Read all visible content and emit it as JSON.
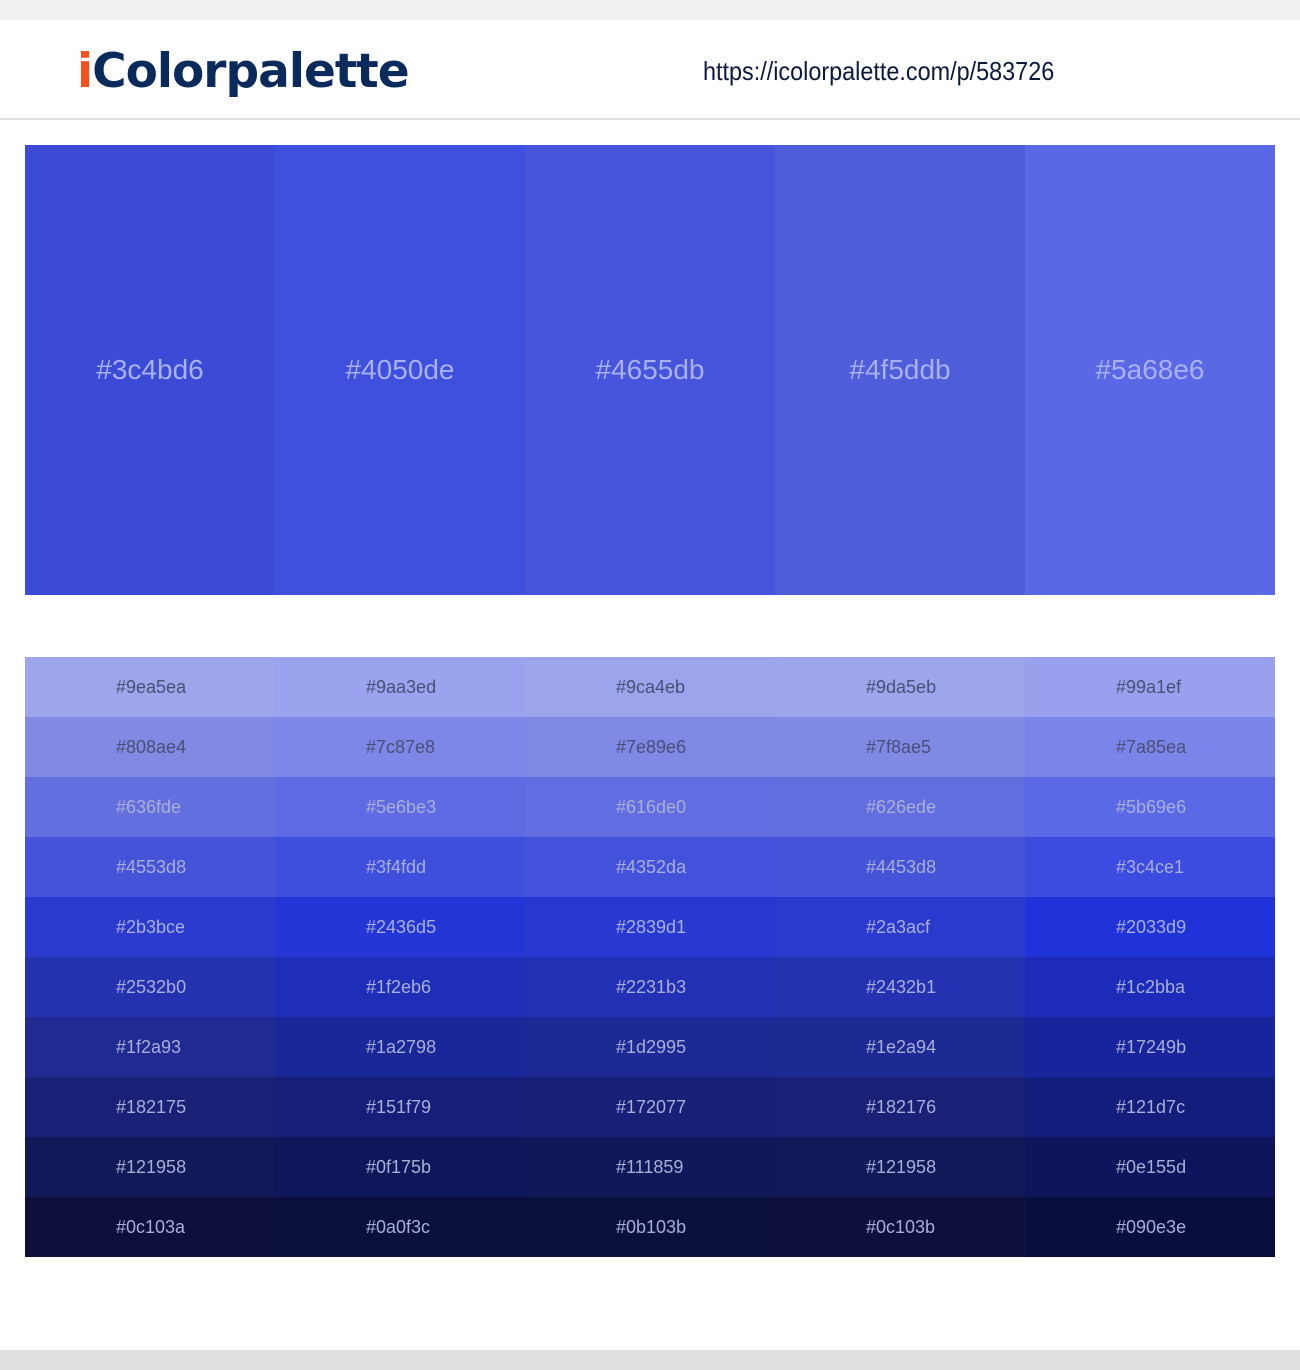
{
  "header": {
    "logo_prefix": "i",
    "logo_rest": "Colorpalette",
    "url": "https://icolorpalette.com/p/583726"
  },
  "colors": {
    "logo_accent": "#f4511e",
    "logo_main": "#0a2a5c"
  },
  "main_palette": [
    "#3c4bd6",
    "#4050de",
    "#4655db",
    "#4f5ddb",
    "#5a68e6"
  ],
  "shades": [
    [
      "#9ea5ea",
      "#9aa3ed",
      "#9ca4eb",
      "#9da5eb",
      "#99a1ef"
    ],
    [
      "#808ae4",
      "#7c87e8",
      "#7e89e6",
      "#7f8ae5",
      "#7a85ea"
    ],
    [
      "#636fde",
      "#5e6be3",
      "#616de0",
      "#626ede",
      "#5b69e6"
    ],
    [
      "#4553d8",
      "#3f4fdd",
      "#4352da",
      "#4453d8",
      "#3c4ce1"
    ],
    [
      "#2b3bce",
      "#2436d5",
      "#2839d1",
      "#2a3acf",
      "#2033d9"
    ],
    [
      "#2532b0",
      "#1f2eb6",
      "#2231b3",
      "#2432b1",
      "#1c2bba"
    ],
    [
      "#1f2a93",
      "#1a2798",
      "#1d2995",
      "#1e2a94",
      "#17249b"
    ],
    [
      "#182175",
      "#151f79",
      "#172077",
      "#182176",
      "#121d7c"
    ],
    [
      "#121958",
      "#0f175b",
      "#111859",
      "#121958",
      "#0e155d"
    ],
    [
      "#0c103a",
      "#0a0f3c",
      "#0b103b",
      "#0c103b",
      "#090e3e"
    ]
  ]
}
